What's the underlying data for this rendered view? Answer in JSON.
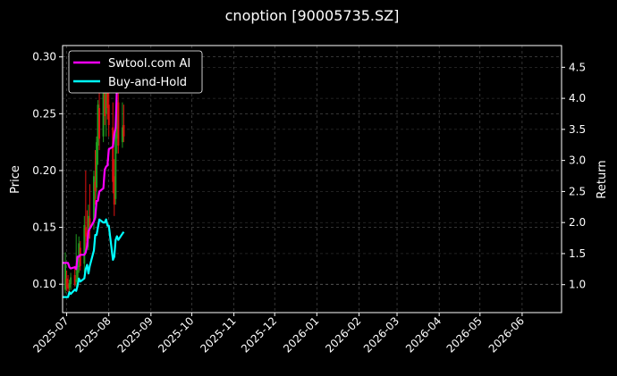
{
  "chart_data": {
    "type": "line",
    "title": "cnoption [90005735.SZ]",
    "ylabel": "Price",
    "y2label": "Return",
    "background": "#000000",
    "text_color": "#ffffff",
    "grid": true,
    "legend_position": "top-left",
    "x_range": [
      "2025-06-28",
      "2026-06-30"
    ],
    "price_ylim": [
      0.075,
      0.31
    ],
    "return_ylim": [
      0.55,
      4.85
    ],
    "x_ticks": [
      "2025-07",
      "2025-08",
      "2025-09",
      "2025-10",
      "2025-11",
      "2025-12",
      "2026-01",
      "2026-02",
      "2026-03",
      "2026-04",
      "2026-05",
      "2026-06"
    ],
    "x_tick_dates": [
      "2025-07-01",
      "2025-08-01",
      "2025-09-01",
      "2025-10-01",
      "2025-11-01",
      "2025-12-01",
      "2026-01-01",
      "2026-02-01",
      "2026-03-01",
      "2026-04-01",
      "2026-05-01",
      "2026-06-01"
    ],
    "y_ticks": [
      "0.10",
      "0.15",
      "0.20",
      "0.25",
      "0.30"
    ],
    "y_tick_values": [
      0.1,
      0.15,
      0.2,
      0.25,
      0.3
    ],
    "y2_ticks": [
      "1.0",
      "1.5",
      "2.0",
      "2.5",
      "3.0",
      "3.5",
      "4.0",
      "4.5"
    ],
    "y2_tick_values": [
      1.0,
      1.5,
      2.0,
      2.5,
      3.0,
      3.5,
      4.0,
      4.5
    ],
    "candles": [
      {
        "date": "2025-06-30",
        "open": 0.095,
        "high": 0.128,
        "low": 0.092,
        "close": 0.118
      },
      {
        "date": "2025-07-01",
        "open": 0.105,
        "high": 0.112,
        "low": 0.094,
        "close": 0.098
      },
      {
        "date": "2025-07-02",
        "open": 0.1,
        "high": 0.108,
        "low": 0.093,
        "close": 0.096
      },
      {
        "date": "2025-07-03",
        "open": 0.097,
        "high": 0.104,
        "low": 0.09,
        "close": 0.101
      },
      {
        "date": "2025-07-04",
        "open": 0.1,
        "high": 0.11,
        "low": 0.095,
        "close": 0.106
      },
      {
        "date": "2025-07-07",
        "open": 0.108,
        "high": 0.116,
        "low": 0.098,
        "close": 0.1
      },
      {
        "date": "2025-07-08",
        "open": 0.102,
        "high": 0.144,
        "low": 0.098,
        "close": 0.104
      },
      {
        "date": "2025-07-09",
        "open": 0.104,
        "high": 0.122,
        "low": 0.1,
        "close": 0.116
      },
      {
        "date": "2025-07-10",
        "open": 0.115,
        "high": 0.142,
        "low": 0.11,
        "close": 0.136
      },
      {
        "date": "2025-07-11",
        "open": 0.132,
        "high": 0.138,
        "low": 0.112,
        "close": 0.116
      },
      {
        "date": "2025-07-14",
        "open": 0.118,
        "high": 0.16,
        "low": 0.11,
        "close": 0.152
      },
      {
        "date": "2025-07-15",
        "open": 0.15,
        "high": 0.2,
        "low": 0.13,
        "close": 0.142
      },
      {
        "date": "2025-07-16",
        "open": 0.145,
        "high": 0.165,
        "low": 0.132,
        "close": 0.138
      },
      {
        "date": "2025-07-17",
        "open": 0.14,
        "high": 0.17,
        "low": 0.13,
        "close": 0.16
      },
      {
        "date": "2025-07-18",
        "open": 0.158,
        "high": 0.188,
        "low": 0.14,
        "close": 0.15
      },
      {
        "date": "2025-07-21",
        "open": 0.155,
        "high": 0.2,
        "low": 0.148,
        "close": 0.195
      },
      {
        "date": "2025-07-22",
        "open": 0.19,
        "high": 0.218,
        "low": 0.17,
        "close": 0.182
      },
      {
        "date": "2025-07-23",
        "open": 0.185,
        "high": 0.23,
        "low": 0.175,
        "close": 0.225
      },
      {
        "date": "2025-07-24",
        "open": 0.222,
        "high": 0.262,
        "low": 0.205,
        "close": 0.258
      },
      {
        "date": "2025-07-25",
        "open": 0.255,
        "high": 0.27,
        "low": 0.218,
        "close": 0.228
      },
      {
        "date": "2025-07-28",
        "open": 0.23,
        "high": 0.275,
        "low": 0.225,
        "close": 0.268
      },
      {
        "date": "2025-07-29",
        "open": 0.268,
        "high": 0.285,
        "low": 0.24,
        "close": 0.248
      },
      {
        "date": "2025-07-30",
        "open": 0.25,
        "high": 0.28,
        "low": 0.23,
        "close": 0.272
      },
      {
        "date": "2025-07-31",
        "open": 0.27,
        "high": 0.29,
        "low": 0.245,
        "close": 0.255
      },
      {
        "date": "2025-08-01",
        "open": 0.258,
        "high": 0.288,
        "low": 0.23,
        "close": 0.24
      },
      {
        "date": "2025-08-04",
        "open": 0.238,
        "high": 0.26,
        "low": 0.18,
        "close": 0.19
      },
      {
        "date": "2025-08-05",
        "open": 0.195,
        "high": 0.21,
        "low": 0.16,
        "close": 0.17
      },
      {
        "date": "2025-08-06",
        "open": 0.175,
        "high": 0.24,
        "low": 0.17,
        "close": 0.232
      },
      {
        "date": "2025-08-07",
        "open": 0.228,
        "high": 0.275,
        "low": 0.215,
        "close": 0.262
      },
      {
        "date": "2025-08-08",
        "open": 0.26,
        "high": 0.29,
        "low": 0.215,
        "close": 0.222
      },
      {
        "date": "2025-08-11",
        "open": 0.225,
        "high": 0.26,
        "low": 0.22,
        "close": 0.238
      },
      {
        "date": "2025-08-12",
        "open": 0.24,
        "high": 0.258,
        "low": 0.225,
        "close": 0.23
      }
    ],
    "series": [
      {
        "name": "Swtool.com AI",
        "color": "#ff00ff",
        "axis": "right",
        "x": [
          "2025-06-28",
          "2025-07-01",
          "2025-07-02",
          "2025-07-03",
          "2025-07-04",
          "2025-07-07",
          "2025-07-08",
          "2025-07-09",
          "2025-07-10",
          "2025-07-11",
          "2025-07-14",
          "2025-07-15",
          "2025-07-16",
          "2025-07-17",
          "2025-07-18",
          "2025-07-21",
          "2025-07-22",
          "2025-07-23",
          "2025-07-24",
          "2025-07-25",
          "2025-07-28",
          "2025-07-29",
          "2025-07-30",
          "2025-07-31",
          "2025-08-01",
          "2025-08-04",
          "2025-08-05",
          "2025-08-06",
          "2025-08-07",
          "2025-08-08"
        ],
        "values": [
          1.35,
          1.35,
          1.35,
          1.28,
          1.26,
          1.28,
          1.25,
          1.45,
          1.45,
          1.48,
          1.48,
          1.52,
          1.62,
          1.86,
          1.9,
          2.02,
          2.08,
          2.35,
          2.35,
          2.5,
          2.55,
          2.85,
          2.9,
          2.92,
          3.18,
          3.22,
          3.42,
          3.52,
          4.2,
          4.55
        ]
      },
      {
        "name": "Buy-and-Hold",
        "color": "#00ffff",
        "axis": "right",
        "x": [
          "2025-06-28",
          "2025-06-30",
          "2025-07-01",
          "2025-07-02",
          "2025-07-03",
          "2025-07-04",
          "2025-07-07",
          "2025-07-08",
          "2025-07-09",
          "2025-07-10",
          "2025-07-11",
          "2025-07-14",
          "2025-07-15",
          "2025-07-16",
          "2025-07-17",
          "2025-07-18",
          "2025-07-21",
          "2025-07-22",
          "2025-07-23",
          "2025-07-24",
          "2025-07-25",
          "2025-07-28",
          "2025-07-29",
          "2025-07-30",
          "2025-07-31",
          "2025-08-01",
          "2025-08-04",
          "2025-08-05",
          "2025-08-06",
          "2025-08-07",
          "2025-08-08",
          "2025-08-11",
          "2025-08-12"
        ],
        "values": [
          0.8,
          0.8,
          0.8,
          0.8,
          0.88,
          0.85,
          0.92,
          0.9,
          0.98,
          1.1,
          1.05,
          1.1,
          1.25,
          1.32,
          1.18,
          1.3,
          1.55,
          1.8,
          1.8,
          1.92,
          2.05,
          2.0,
          2.0,
          2.05,
          1.95,
          1.95,
          1.4,
          1.45,
          1.72,
          1.78,
          1.72,
          1.82,
          1.85
        ]
      }
    ]
  }
}
